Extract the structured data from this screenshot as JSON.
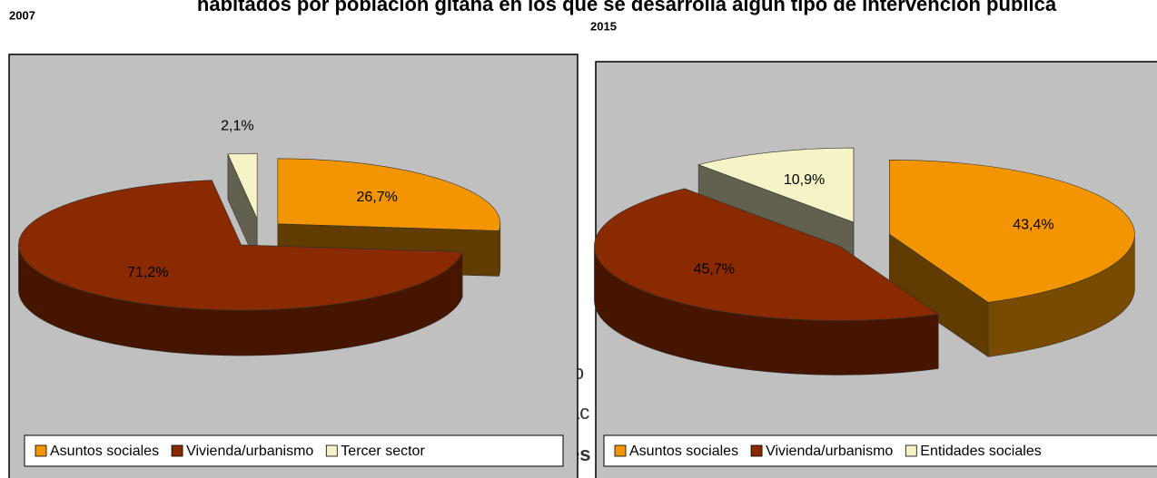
{
  "title": "habitados por población gitana en los que se desarrolla algún tipo de intervención pública",
  "fragments": [
    "io",
    "ac",
    "es"
  ],
  "chart_data": [
    {
      "type": "pie",
      "title": "2007",
      "categories": [
        "Asuntos sociales",
        "Vivienda/urbanismo",
        "Tercer sector"
      ],
      "values": [
        26.7,
        71.2,
        2.1
      ],
      "value_labels": [
        "26,7%",
        "71,2%",
        "2,1%"
      ],
      "colors": [
        "#f29500",
        "#8a2a00",
        "#f6f3c6"
      ],
      "legend": "bottom"
    },
    {
      "type": "pie",
      "title": "2015",
      "categories": [
        "Asuntos sociales",
        "Vivienda/urbanismo",
        "Entidades sociales"
      ],
      "values": [
        43.4,
        45.7,
        10.9
      ],
      "value_labels": [
        "43,4%",
        "45,7%",
        "10,9%"
      ],
      "colors": [
        "#f29500",
        "#8a2a00",
        "#f6f3c6"
      ],
      "legend": "bottom"
    }
  ]
}
